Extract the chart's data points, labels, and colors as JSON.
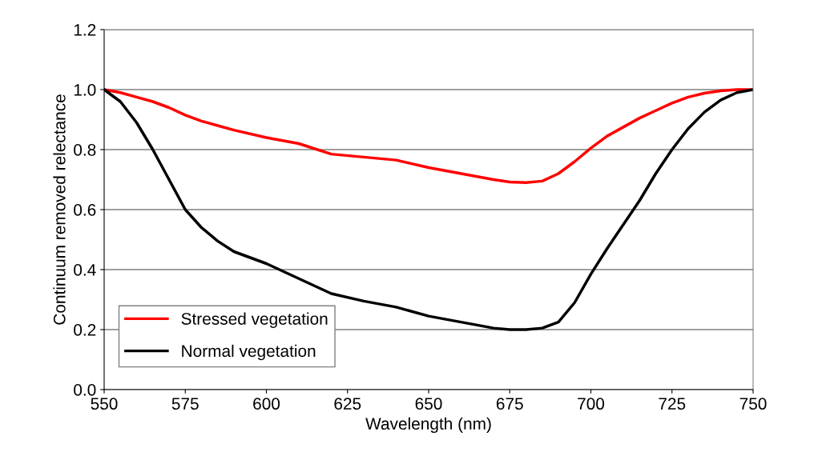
{
  "chart_data": {
    "type": "line",
    "xlabel": "Wavelength (nm)",
    "ylabel": "Continuum removed relectance",
    "xlim": [
      550,
      750
    ],
    "xticks": [
      550,
      575,
      600,
      625,
      650,
      675,
      700,
      725,
      750
    ],
    "ylim": [
      0.0,
      1.2
    ],
    "yticks": [
      {
        "value": 0,
        "label": "0.0"
      },
      {
        "value": 0.2,
        "label": "0.2"
      },
      {
        "value": 0.4,
        "label": "0.4"
      },
      {
        "value": 0.6,
        "label": "0.6"
      },
      {
        "value": 0.8,
        "label": "0.8"
      },
      {
        "value": 1,
        "label": "1.0"
      },
      {
        "value": 1.2,
        "label": "1.2"
      }
    ],
    "grid": "y",
    "legend": "bottom left",
    "marker": "none",
    "line_style": "solid",
    "x": [
      550,
      555,
      560,
      565,
      570,
      575,
      580,
      585,
      590,
      600,
      610,
      620,
      630,
      640,
      650,
      660,
      670,
      675,
      680,
      685,
      690,
      695,
      700,
      705,
      710,
      715,
      720,
      725,
      730,
      735,
      740,
      745,
      750
    ],
    "series": [
      {
        "name": "Stressed vegetation",
        "color": "#ff0000",
        "values": [
          1.0,
          0.99,
          0.975,
          0.96,
          0.94,
          0.915,
          0.895,
          0.88,
          0.865,
          0.84,
          0.82,
          0.785,
          0.775,
          0.765,
          0.74,
          0.72,
          0.7,
          0.692,
          0.69,
          0.695,
          0.72,
          0.76,
          0.805,
          0.845,
          0.875,
          0.905,
          0.93,
          0.955,
          0.975,
          0.988,
          0.996,
          1.0,
          1.0
        ]
      },
      {
        "name": "Normal vegetation",
        "color": "#000000",
        "values": [
          1.0,
          0.96,
          0.89,
          0.8,
          0.7,
          0.6,
          0.54,
          0.495,
          0.46,
          0.42,
          0.37,
          0.32,
          0.295,
          0.275,
          0.245,
          0.225,
          0.205,
          0.2,
          0.2,
          0.205,
          0.225,
          0.29,
          0.385,
          0.47,
          0.55,
          0.63,
          0.72,
          0.8,
          0.87,
          0.925,
          0.965,
          0.99,
          1.0
        ]
      }
    ]
  }
}
